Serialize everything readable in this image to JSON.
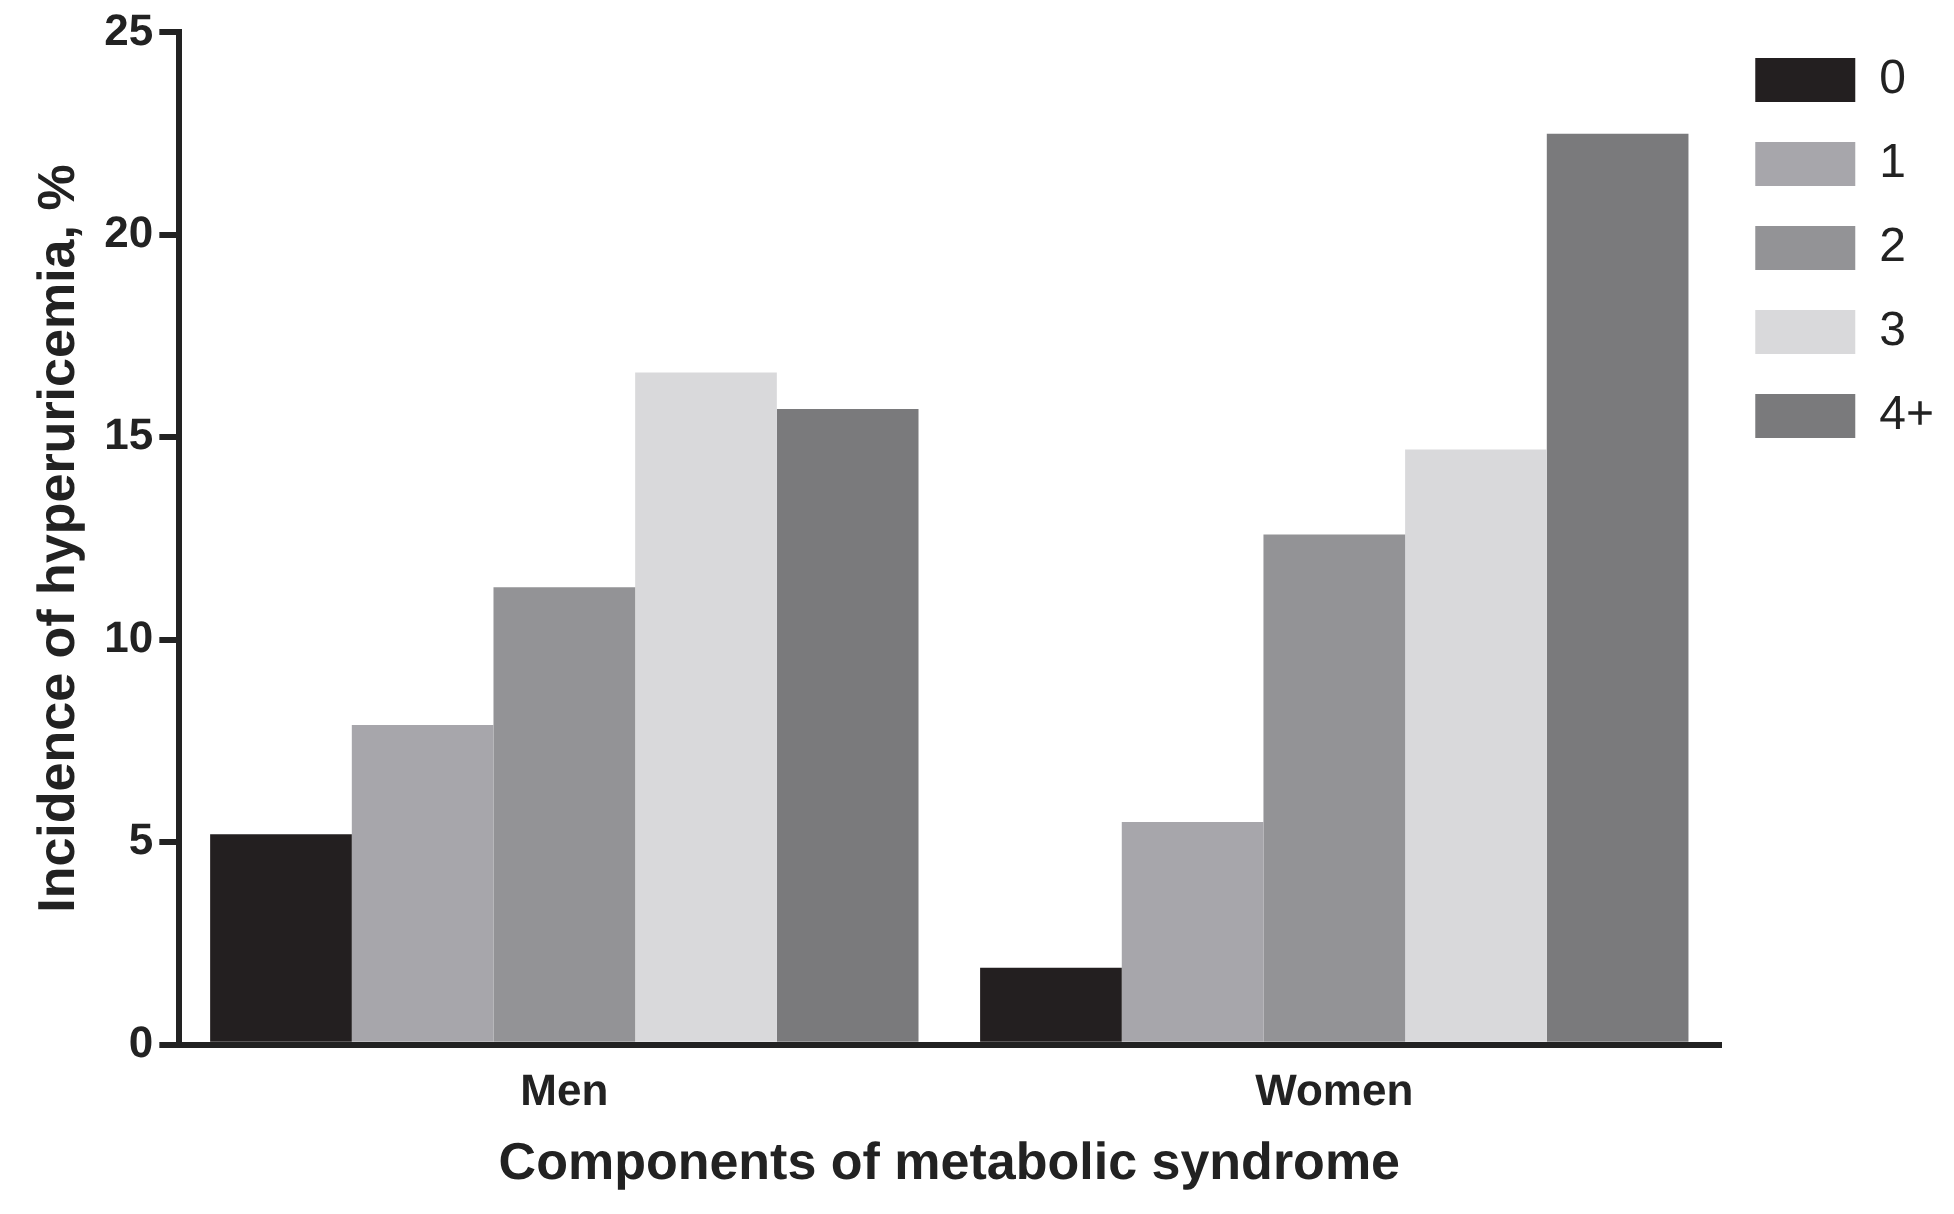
{
  "chart_data": {
    "type": "bar",
    "xlabel": "Components of metabolic syndrome",
    "ylabel": "Incidence of hyperuricemia, %",
    "categories": [
      "Men",
      "Women"
    ],
    "series": [
      {
        "name": "0",
        "color": "#231f20",
        "values": [
          5.2,
          1.9
        ]
      },
      {
        "name": "1",
        "color": "#a7a6ab",
        "values": [
          7.9,
          5.5
        ]
      },
      {
        "name": "2",
        "color": "#939396",
        "values": [
          11.3,
          12.6
        ]
      },
      {
        "name": "3",
        "color": "#d9d9db",
        "values": [
          16.6,
          14.7
        ]
      },
      {
        "name": "4+",
        "color": "#7a7a7c",
        "values": [
          15.7,
          22.5
        ]
      }
    ],
    "ylim": [
      0,
      25
    ],
    "yticks": [
      0,
      5,
      10,
      15,
      20,
      25
    ],
    "grid": false,
    "legend": "top right"
  }
}
